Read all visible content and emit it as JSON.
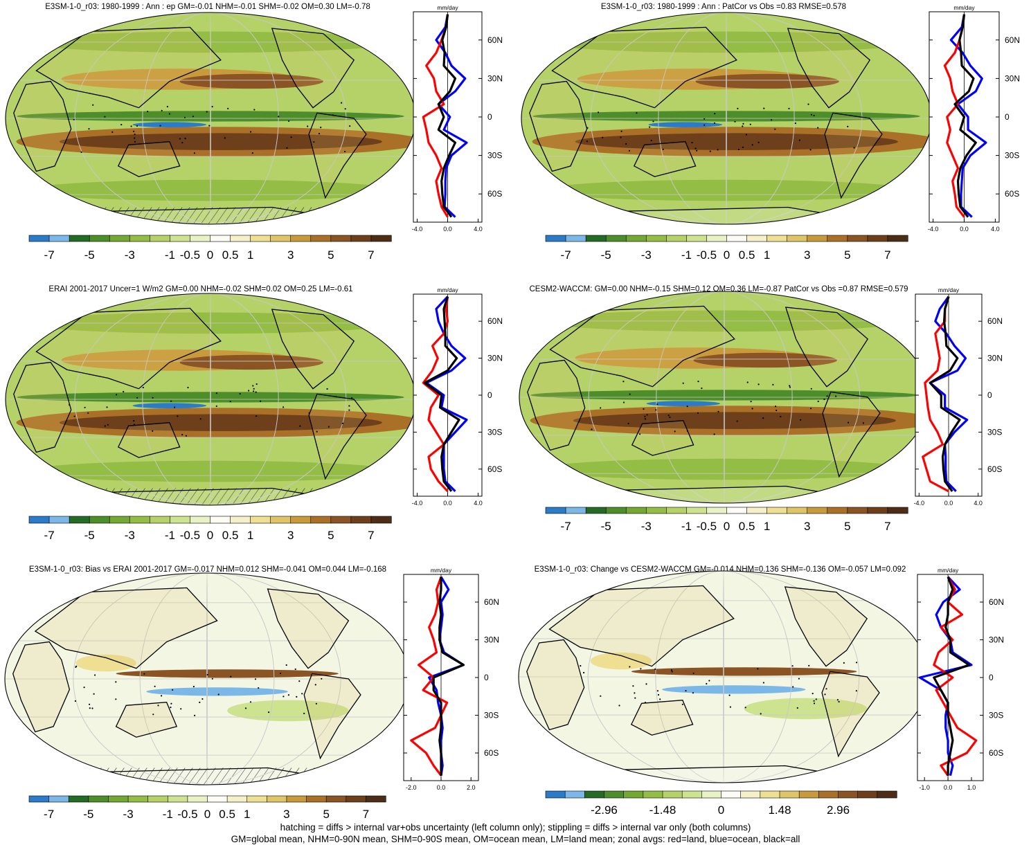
{
  "colormap": [
    "#2b7bc8",
    "#7bb8e8",
    "#246b25",
    "#4d8e2a",
    "#73a832",
    "#94bd45",
    "#b4d268",
    "#cde38f",
    "#e8f2c4",
    "#fcfbf4",
    "#f5f0c9",
    "#eedf93",
    "#e0c468",
    "#c99a3c",
    "#ab7027",
    "#8b5424",
    "#6d3f1b",
    "#4d2d15"
  ],
  "zonal_colors": {
    "land": "#ff0000",
    "ocean": "#0000ff",
    "all": "#000000"
  },
  "panels": [
    {
      "title": "E3SM-1-0_r03: 1980-1999 : Ann : ep GM=-0.01 NHM=-0.01 SHM=-0.02 OM=0.30 LM=-0.78",
      "colorbar_labels": [
        "-7",
        "-5",
        "-3",
        "-1",
        "-0.5",
        "0",
        "0.5",
        "1",
        "3",
        "5",
        "7"
      ],
      "zonal": {
        "unit": "mm/day",
        "xticks": [
          "-4.0",
          "0.0",
          "4.0"
        ],
        "xlim": [
          -4.5,
          4.5
        ],
        "yticks": [
          "60N",
          "30N",
          "0",
          "30S",
          "60S"
        ],
        "lat": [
          80,
          70,
          60,
          50,
          40,
          30,
          20,
          10,
          0,
          -10,
          -20,
          -30,
          -40,
          -50,
          -60,
          -70,
          -78
        ],
        "ocean": [
          0,
          -0.3,
          -1.5,
          -0.3,
          0.5,
          2.3,
          1,
          -1.2,
          0.3,
          -0.5,
          2.5,
          0.5,
          -0.2,
          -0.3,
          -0.3,
          -0.4,
          1
        ],
        "land": [
          0,
          -0.2,
          -0.8,
          -1.5,
          -2.8,
          -1.8,
          -1.5,
          -0.5,
          -3.2,
          -2.8,
          -2.5,
          -1.5,
          -0.8,
          -1.5,
          -1.2,
          -0.8,
          0
        ],
        "all": [
          0,
          -0.2,
          -0.7,
          -0.4,
          -0.5,
          1,
          0.3,
          -1.2,
          -0.5,
          -1.2,
          1,
          0.2,
          -0.5,
          -0.8,
          -0.7,
          -0.5,
          0.5
        ]
      }
    },
    {
      "title": "E3SM-1-0_r03: 1980-1999 : Ann : PatCor vs Obs =0.83 RMSE=0.578",
      "colorbar_labels": [
        "-7",
        "-5",
        "-3",
        "-1",
        "-0.5",
        "0",
        "0.5",
        "1",
        "3",
        "5",
        "7"
      ],
      "zonal": {
        "unit": "mm/day",
        "xticks": [
          "-4.0",
          "0.0",
          "4.0"
        ],
        "xlim": [
          -4.5,
          4.5
        ],
        "yticks": [
          "60N",
          "30N",
          "0",
          "30S",
          "60S"
        ],
        "lat": [
          80,
          70,
          60,
          50,
          40,
          30,
          20,
          10,
          0,
          -10,
          -20,
          -30,
          -40,
          -50,
          -60,
          -70,
          -78
        ],
        "ocean": [
          0,
          -0.3,
          -1.7,
          -0.2,
          0.8,
          2.3,
          1.5,
          -0.8,
          0.5,
          0.5,
          2.8,
          0.8,
          -0.2,
          -0.3,
          -0.4,
          -0.4,
          1
        ],
        "land": [
          0,
          -0.2,
          -0.6,
          -1.2,
          -2.5,
          -1.8,
          -1.5,
          -0.8,
          -2.2,
          -1.8,
          -2.2,
          -1.5,
          -0.8,
          -1.5,
          -1.2,
          -1,
          0
        ],
        "all": [
          0,
          -0.2,
          -0.6,
          -0.4,
          -0.3,
          1.2,
          0.6,
          -1.2,
          0,
          -0.5,
          1.5,
          0.3,
          -0.5,
          -0.8,
          -0.7,
          -0.5,
          0.5
        ]
      }
    },
    {
      "title": "ERAI 2001-2017 Uncer=1 W/m2 GM=0.00 NHM=-0.02 SHM=0.02 OM=0.25 LM=-0.61",
      "colorbar_labels": [
        "-7",
        "-5",
        "-3",
        "-1",
        "-0.5",
        "0",
        "0.5",
        "1",
        "3",
        "5",
        "7"
      ],
      "zonal": {
        "unit": "mm/day",
        "xticks": [
          "-4.0",
          "0.0",
          "4.0"
        ],
        "xlim": [
          -4.5,
          4.5
        ],
        "yticks": [
          "60N",
          "30N",
          "0",
          "30S",
          "60S"
        ],
        "lat": [
          80,
          70,
          60,
          50,
          40,
          30,
          20,
          10,
          0,
          -10,
          -20,
          -30,
          -40,
          -50,
          -60,
          -70,
          -78
        ],
        "ocean": [
          0,
          -1.5,
          -1.2,
          -0.5,
          0.5,
          2.3,
          0.5,
          -2.8,
          -0.5,
          -0.8,
          2.5,
          1,
          -0.5,
          -0.5,
          -0.5,
          -0.3,
          1
        ],
        "land": [
          0,
          -0.2,
          0,
          -0.5,
          -2,
          -1.3,
          -2,
          -3.2,
          -1.2,
          -2.2,
          -2.5,
          -1.5,
          -0.5,
          -2.5,
          -2.2,
          -1.2,
          0
        ],
        "all": [
          0,
          -0.5,
          -0.4,
          -0.3,
          -0.3,
          1.2,
          0,
          -3,
          -0.8,
          -1,
          1.5,
          0.5,
          -0.5,
          -0.8,
          -0.7,
          -0.5,
          0.5
        ]
      }
    },
    {
      "title": "CESM2-WACCM: GM=0.00 NHM=-0.15 SHM=0.12 OM=0.36 LM=-0.87 PatCor vs Obs =0.87 RMSE=0.579",
      "colorbar_labels": [
        "-7",
        "-5",
        "-3",
        "-1",
        "-0.5",
        "0",
        "0.5",
        "1",
        "3",
        "5",
        "7"
      ],
      "zonal": {
        "unit": "mm/day",
        "xticks": [
          "-4.0",
          "0.0",
          "4.0"
        ],
        "xlim": [
          -4.5,
          4.5
        ],
        "yticks": [
          "60N",
          "30N",
          "0",
          "30S",
          "60S"
        ],
        "lat": [
          80,
          70,
          60,
          50,
          40,
          30,
          20,
          10,
          0,
          -10,
          -20,
          -30,
          -40,
          -50,
          -60,
          -70,
          -78
        ],
        "ocean": [
          0,
          -1.2,
          -1.8,
          -0.3,
          0.8,
          2.3,
          1.2,
          -2.5,
          -0.5,
          -0.5,
          2.5,
          0.8,
          -0.5,
          -0.4,
          -0.4,
          -0.3,
          1
        ],
        "land": [
          0,
          -0.5,
          -0.5,
          -1.8,
          -1.5,
          -1.2,
          -1.5,
          -3.2,
          -3,
          -2.8,
          -2.5,
          -1.5,
          -0.8,
          -3.5,
          -3,
          -2.5,
          0
        ],
        "all": [
          0,
          -0.5,
          -0.6,
          -0.4,
          -0.3,
          1.2,
          0.2,
          -2.5,
          -1,
          -1,
          1.5,
          0.4,
          -0.5,
          -0.8,
          -0.7,
          -0.5,
          0.5
        ]
      }
    },
    {
      "title": "E3SM-1-0_r03: Bias vs ERAI 2001-2017 GM=-0.017 NHM=0.012 SHM=-0.041 OM=0.044 LM=-0.168",
      "colorbar_labels": [
        "-7",
        "-5",
        "-3",
        "-1",
        "-0.5",
        "0",
        "0.5",
        "1",
        "3",
        "5",
        "7"
      ],
      "zonal": {
        "unit": "mm/day",
        "xticks": [
          "-2.0",
          "0.0",
          "2.0"
        ],
        "xlim": [
          -2.5,
          2.5
        ],
        "yticks": [
          "60N",
          "30N",
          "0",
          "30S",
          "60S"
        ],
        "lat": [
          80,
          70,
          60,
          50,
          40,
          30,
          20,
          10,
          0,
          -10,
          -20,
          -30,
          -40,
          -50,
          -60,
          -70,
          -78
        ],
        "ocean": [
          0,
          0.5,
          0,
          0.1,
          0,
          -0.1,
          0.2,
          1.5,
          -0.8,
          -0.3,
          -0.2,
          0,
          0.1,
          0,
          0,
          0.1,
          0
        ],
        "land": [
          0,
          -0.3,
          -0.2,
          -0.4,
          -0.8,
          -0.5,
          -0.3,
          -1.5,
          -0.5,
          -1.2,
          0.4,
          0,
          -0.4,
          -2,
          -1,
          -0.5,
          0
        ],
        "all": [
          0,
          0,
          -0.1,
          0,
          -0.1,
          -0.1,
          0.1,
          1.5,
          -0.5,
          -0.5,
          0,
          0,
          0,
          -0.1,
          0,
          0,
          0
        ]
      }
    },
    {
      "title": "E3SM-1-0_r03: Change vs CESM2-WACCM GM=-0.014 NHM=0.136 SHM=-0.136 OM=-0.057 LM=0.092",
      "colorbar_labels": [
        "-2.96",
        "-1.48",
        "0",
        "1.48",
        "2.96"
      ],
      "zonal": {
        "unit": "mm/day",
        "xticks": [
          "-1.0",
          "0.0",
          "1.0"
        ],
        "xlim": [
          -1.3,
          1.5
        ],
        "yticks": [
          "60N",
          "30N",
          "0",
          "30S",
          "60S"
        ],
        "lat": [
          80,
          70,
          60,
          50,
          40,
          30,
          20,
          10,
          0,
          -10,
          -20,
          -30,
          -40,
          -50,
          -60,
          -70,
          -78
        ],
        "ocean": [
          0,
          0.5,
          -0.2,
          -0.5,
          -0.3,
          0.1,
          0.2,
          1,
          -1.2,
          -0.3,
          0,
          -0.1,
          -0.1,
          0,
          0,
          0.2,
          0.1
        ],
        "land": [
          0,
          0.3,
          0,
          0.6,
          -0.3,
          0.2,
          -0.4,
          -0.6,
          0.2,
          -0.5,
          -0.2,
          0.1,
          0.4,
          1.2,
          0.8,
          -0.3,
          0
        ],
        "all": [
          0,
          0.2,
          0,
          0,
          -0.1,
          0.1,
          0.1,
          0.9,
          -0.6,
          -0.3,
          0,
          0,
          0.1,
          0.2,
          0.1,
          0,
          0
        ]
      }
    }
  ],
  "footnotes": [
    "hatching = diffs > internal var+obs uncertainty (left column only); stippling = diffs > internal var only (both columns)",
    "GM=global mean, NHM=0-90N mean, SHM=0-90S mean, OM=ocean mean, LM=land mean; zonal avgs: red=land, blue=ocean, black=all"
  ]
}
